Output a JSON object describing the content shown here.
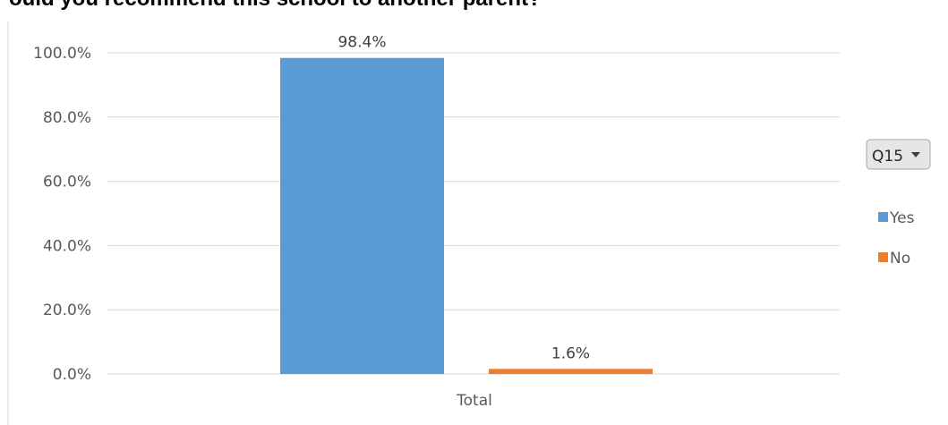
{
  "chart_data": {
    "type": "bar",
    "title": "ould you recommend this school to another parent?",
    "categories": [
      "Total"
    ],
    "series": [
      {
        "name": "Yes",
        "values": [
          98.4
        ],
        "label": "98.4%",
        "color": "#5B9BD5"
      },
      {
        "name": "No",
        "values": [
          1.6
        ],
        "label": "1.6%",
        "color": "#ED7D31"
      }
    ],
    "y_ticks": [
      "0.0%",
      "20.0%",
      "40.0%",
      "60.0%",
      "80.0%",
      "100.0%"
    ],
    "ylim": [
      0,
      100
    ],
    "grid": true,
    "legend_position": "right"
  },
  "filter": {
    "label": "Q15",
    "icon": "dropdown-arrow-icon"
  }
}
